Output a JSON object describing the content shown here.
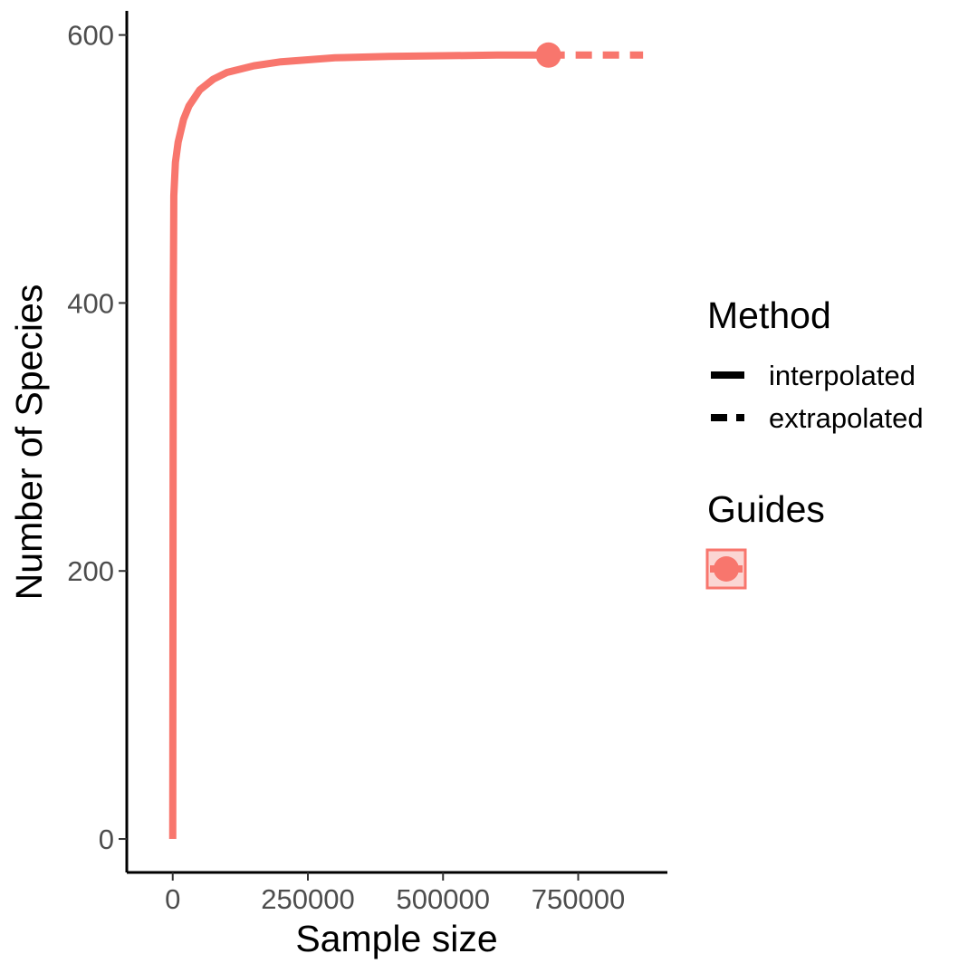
{
  "chart_data": {
    "type": "line",
    "xlabel": "Sample size",
    "ylabel": "Number of Species",
    "xlim": [
      -85000,
      915000
    ],
    "ylim": [
      -25,
      618
    ],
    "x_ticks": [
      0,
      250000,
      500000,
      750000
    ],
    "x_tick_labels": [
      "0",
      "250000",
      "500000",
      "750000"
    ],
    "y_ticks": [
      0,
      200,
      400,
      600
    ],
    "y_tick_labels": [
      "0",
      "200",
      "400",
      "600"
    ],
    "grid": false,
    "legend_position": "right",
    "series": [
      {
        "name": "Guides",
        "color": "#F8766D",
        "observed_point": {
          "x": 695000,
          "y": 585
        },
        "interpolated": {
          "x": [
            1,
            1000,
            2000,
            5000,
            10000,
            20000,
            30000,
            50000,
            75000,
            100000,
            150000,
            200000,
            300000,
            400000,
            500000,
            600000,
            695000
          ],
          "y": [
            0,
            400,
            480,
            505,
            520,
            537,
            547,
            559,
            567,
            572,
            577,
            580,
            583,
            584,
            584.5,
            585,
            585
          ]
        },
        "extrapolated": {
          "x": [
            695000,
            780000,
            870000
          ],
          "y": [
            585,
            585,
            585
          ]
        }
      }
    ]
  },
  "legend": {
    "method_title": "Method",
    "method_items": [
      {
        "label": "interpolated",
        "style": "solid"
      },
      {
        "label": "extrapolated",
        "style": "dashed"
      }
    ],
    "group_title": "Guides"
  }
}
